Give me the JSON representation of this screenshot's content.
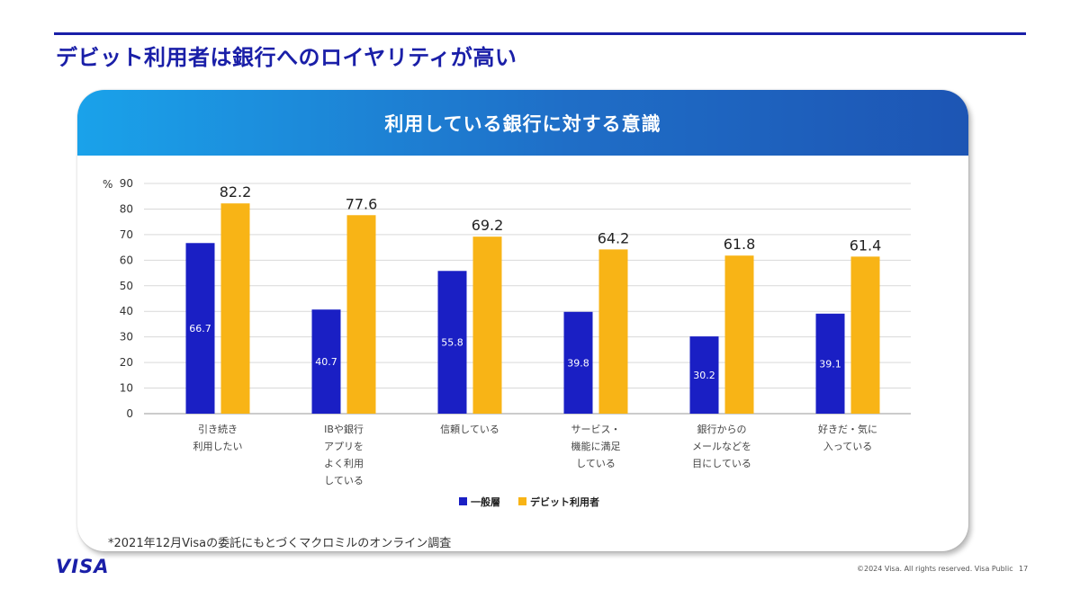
{
  "slide": {
    "title": "デビット利用者は銀行へのロイヤリティが高い",
    "footnote": "*2021年12月Visaの委託にもとづくマクロミルのオンライン調査",
    "logo": "VISA",
    "copyright": "©2024 Visa. All rights reserved. Visa Public",
    "page_number": "17"
  },
  "colors": {
    "accent": "#1a1fa8",
    "header_gradient_start": "#1aa2ea",
    "header_gradient_end": "#1d55b4",
    "series_general": "#1a1fc4",
    "series_debit": "#f8b416"
  },
  "chart_data": {
    "type": "bar",
    "title": "利用している銀行に対する意識",
    "ylabel": "%",
    "ylim": [
      0,
      90
    ],
    "yticks": [
      0,
      10,
      20,
      30,
      40,
      50,
      60,
      70,
      80,
      90
    ],
    "grid": true,
    "legend_position": "bottom-center",
    "categories": [
      [
        "引き続き",
        "利用したい"
      ],
      [
        "IBや銀行",
        "アプリを",
        "よく利用",
        "している"
      ],
      [
        "信頼している"
      ],
      [
        "サービス・",
        "機能に満足",
        "している"
      ],
      [
        "銀行からの",
        "メールなどを",
        "目にしている"
      ],
      [
        "好きだ・気に",
        "入っている"
      ]
    ],
    "series": [
      {
        "name": "一般層",
        "values": [
          66.7,
          40.7,
          55.8,
          39.8,
          30.2,
          39.1
        ]
      },
      {
        "name": "デビット利用者",
        "values": [
          82.2,
          77.6,
          69.2,
          64.2,
          61.8,
          61.4
        ]
      }
    ]
  }
}
